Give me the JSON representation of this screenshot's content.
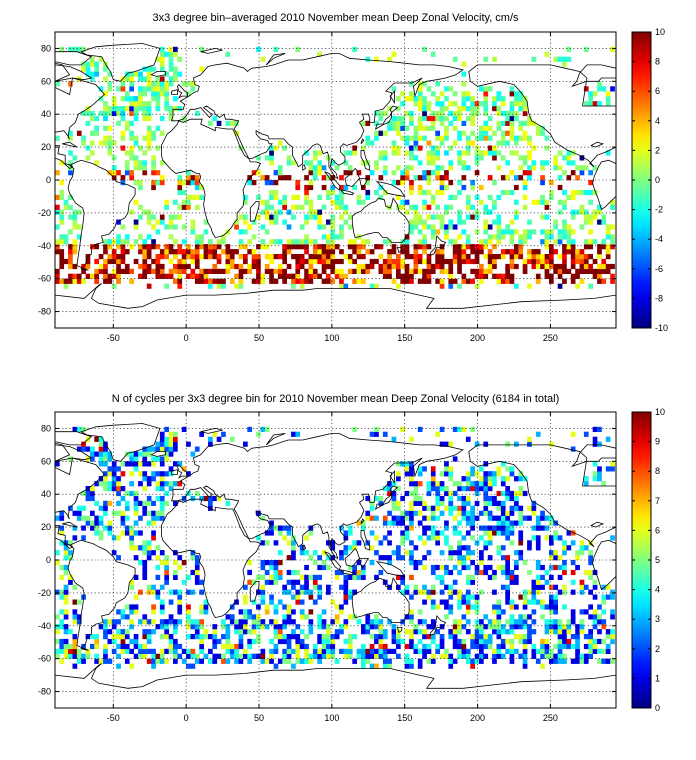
{
  "panels": [
    {
      "title": "3x3 degree bin–averaged 2010 November mean Deep Zonal Velocity, cm/s",
      "colorbar": {
        "min": -10,
        "max": 10,
        "ticks": [
          -10,
          -8,
          -6,
          -4,
          -2,
          0,
          2,
          4,
          6,
          8,
          10
        ],
        "colormap": "jet"
      },
      "x_ticks": [
        -50,
        0,
        50,
        100,
        150,
        200,
        250
      ],
      "y_ticks": [
        -80,
        -60,
        -40,
        -20,
        0,
        20,
        40,
        60,
        80
      ],
      "xlim": [
        -90,
        295
      ],
      "ylim": [
        -90,
        90
      ],
      "bin_size_deg": 3
    },
    {
      "title": "N of cycles per 3x3 degree bin for 2010 November mean Deep Zonal Velocity (6184 in total)",
      "colorbar": {
        "min": 0,
        "max": 10,
        "ticks": [
          0,
          1,
          2,
          3,
          4,
          5,
          6,
          7,
          8,
          9,
          10
        ],
        "colormap": "jet"
      },
      "x_ticks": [
        -50,
        0,
        50,
        100,
        150,
        200,
        250
      ],
      "y_ticks": [
        -80,
        -60,
        -40,
        -20,
        0,
        20,
        40,
        60,
        80
      ],
      "xlim": [
        -90,
        295
      ],
      "ylim": [
        -90,
        90
      ],
      "bin_size_deg": 3
    }
  ],
  "colors": {
    "coastline": "#000000",
    "grid": "#000000",
    "background": "#ffffff"
  }
}
